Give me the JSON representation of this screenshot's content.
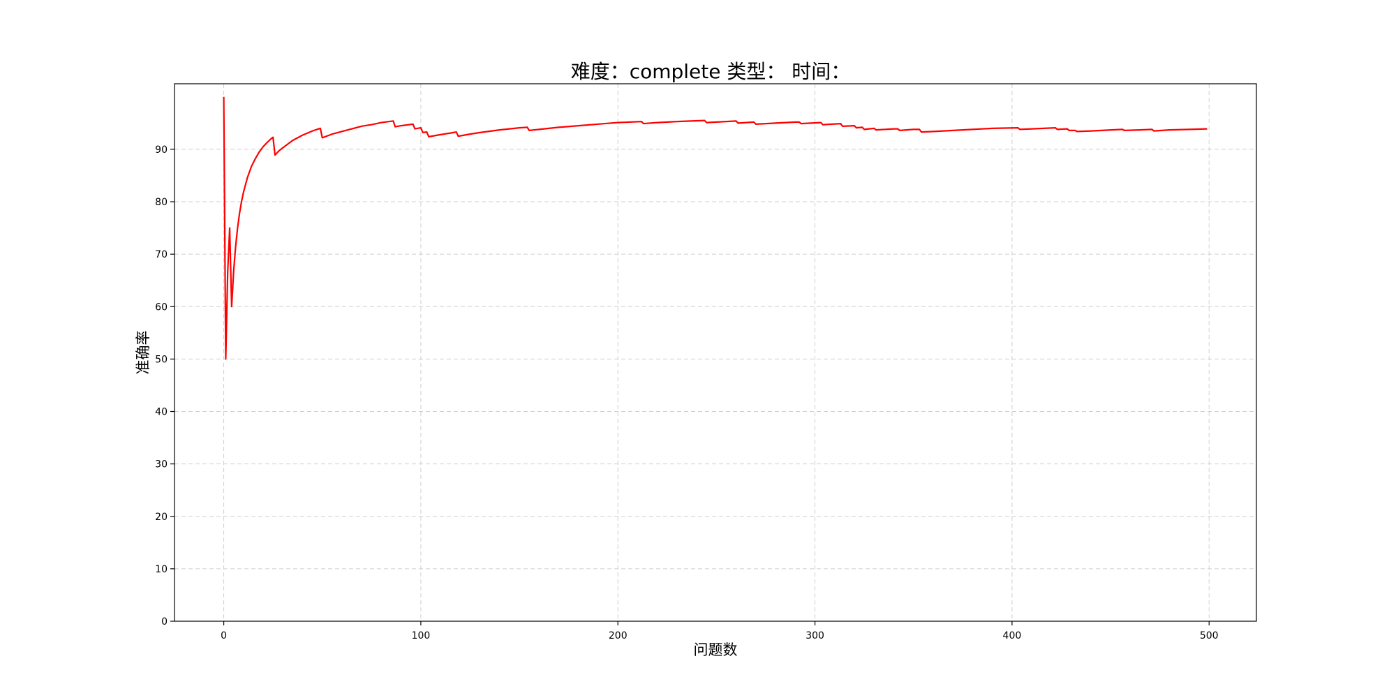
{
  "chart_data": {
    "type": "line",
    "title": "难度：complete 类型： 时间：",
    "xlabel": "问题数",
    "ylabel": "准确率",
    "xlim": [
      -25,
      524
    ],
    "ylim": [
      0,
      102.5
    ],
    "x_ticks": [
      0,
      100,
      200,
      300,
      400,
      500
    ],
    "y_ticks": [
      0,
      10,
      20,
      30,
      40,
      50,
      60,
      70,
      80,
      90
    ],
    "grid": true,
    "series": [
      {
        "color": "#ff0000",
        "points": [
          [
            0,
            100
          ],
          [
            1,
            50
          ],
          [
            2,
            66.7
          ],
          [
            3,
            75
          ],
          [
            4,
            60
          ],
          [
            5,
            66.7
          ],
          [
            6,
            71.4
          ],
          [
            7,
            75
          ],
          [
            8,
            77.8
          ],
          [
            9,
            80
          ],
          [
            10,
            81.8
          ],
          [
            12,
            84.6
          ],
          [
            14,
            86.7
          ],
          [
            16,
            88.2
          ],
          [
            18,
            89.5
          ],
          [
            20,
            90.5
          ],
          [
            22,
            91.3
          ],
          [
            24,
            92
          ],
          [
            25,
            92.3
          ],
          [
            26,
            88.9
          ],
          [
            28,
            89.7
          ],
          [
            30,
            90.3
          ],
          [
            35,
            91.7
          ],
          [
            40,
            92.7
          ],
          [
            45,
            93.5
          ],
          [
            49,
            94
          ],
          [
            50,
            92.2
          ],
          [
            55,
            92.9
          ],
          [
            60,
            93.4
          ],
          [
            65,
            93.9
          ],
          [
            70,
            94.4
          ],
          [
            75,
            94.7
          ],
          [
            80,
            95.1
          ],
          [
            86,
            95.4
          ],
          [
            87,
            94.3
          ],
          [
            90,
            94.5
          ],
          [
            96,
            94.8
          ],
          [
            97,
            93.9
          ],
          [
            100,
            94.1
          ],
          [
            101,
            93.2
          ],
          [
            103,
            93.3
          ],
          [
            104,
            92.4
          ],
          [
            110,
            92.8
          ],
          [
            115,
            93.1
          ],
          [
            118,
            93.3
          ],
          [
            119,
            92.5
          ],
          [
            125,
            92.9
          ],
          [
            130,
            93.2
          ],
          [
            140,
            93.7
          ],
          [
            150,
            94.1
          ],
          [
            154,
            94.2
          ],
          [
            155,
            93.6
          ],
          [
            160,
            93.8
          ],
          [
            170,
            94.2
          ],
          [
            180,
            94.5
          ],
          [
            190,
            94.8
          ],
          [
            200,
            95.1
          ],
          [
            212,
            95.3
          ],
          [
            213,
            94.9
          ],
          [
            220,
            95.1
          ],
          [
            230,
            95.3
          ],
          [
            244,
            95.5
          ],
          [
            245,
            95.1
          ],
          [
            255,
            95.3
          ],
          [
            260,
            95.4
          ],
          [
            261,
            95.0
          ],
          [
            269,
            95.2
          ],
          [
            270,
            94.8
          ],
          [
            280,
            95.0
          ],
          [
            290,
            95.2
          ],
          [
            292,
            95.2
          ],
          [
            293,
            94.9
          ],
          [
            303,
            95.1
          ],
          [
            304,
            94.7
          ],
          [
            313,
            94.9
          ],
          [
            314,
            94.4
          ],
          [
            320,
            94.5
          ],
          [
            321,
            94.1
          ],
          [
            324,
            94.2
          ],
          [
            325,
            93.8
          ],
          [
            330,
            94.0
          ],
          [
            331,
            93.7
          ],
          [
            340,
            93.9
          ],
          [
            342,
            93.9
          ],
          [
            343,
            93.6
          ],
          [
            350,
            93.8
          ],
          [
            353,
            93.8
          ],
          [
            354,
            93.3
          ],
          [
            360,
            93.4
          ],
          [
            370,
            93.6
          ],
          [
            380,
            93.8
          ],
          [
            390,
            94.0
          ],
          [
            403,
            94.1
          ],
          [
            404,
            93.8
          ],
          [
            410,
            93.9
          ],
          [
            422,
            94.1
          ],
          [
            423,
            93.8
          ],
          [
            428,
            93.9
          ],
          [
            429,
            93.6
          ],
          [
            432,
            93.6
          ],
          [
            433,
            93.4
          ],
          [
            440,
            93.5
          ],
          [
            456,
            93.8
          ],
          [
            457,
            93.6
          ],
          [
            465,
            93.7
          ],
          [
            471,
            93.8
          ],
          [
            472,
            93.5
          ],
          [
            480,
            93.7
          ],
          [
            490,
            93.8
          ],
          [
            499,
            93.9
          ]
        ]
      }
    ]
  }
}
